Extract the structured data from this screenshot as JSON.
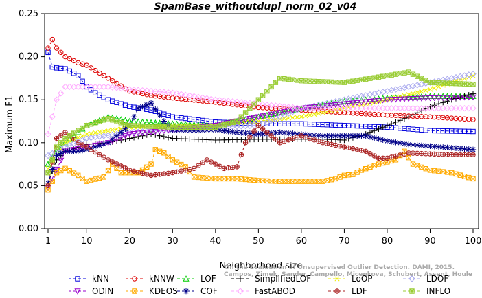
{
  "chart_data": {
    "type": "line",
    "title": "SpamBase_withoutdupl_norm_02_v04",
    "xlabel": "Neighborhood size",
    "ylabel": "Maximum F1",
    "xlim": [
      1,
      100
    ],
    "ylim": [
      0,
      0.25
    ],
    "x_ticks": [
      1,
      10,
      20,
      30,
      40,
      50,
      60,
      70,
      80,
      90,
      100
    ],
    "x_tick_labels": [
      "1",
      "10",
      "20",
      "30",
      "40",
      "50",
      "60",
      "70",
      "80",
      "90",
      "100"
    ],
    "y_ticks": [
      0,
      0.05,
      0.1,
      0.15,
      0.2,
      0.25
    ],
    "y_tick_labels": [
      "0.00",
      "0.05",
      "0.10",
      "0.15",
      "0.20",
      "0.25"
    ],
    "grid": false,
    "legend_placement": "bottom",
    "credit": [
      "Campos, Zimek, Sander, Campello, Micenkova, Schubert, Assent, Houle",
      "On the Evaluation of Unsupervised Outlier Detection. DAMI, 2015."
    ],
    "series": [
      {
        "name": "kNN",
        "color": "#0000dd",
        "marker": "square",
        "x": [
          1,
          2,
          3,
          5,
          8,
          10,
          12,
          15,
          20,
          25,
          30,
          40,
          50,
          60,
          70,
          80,
          90,
          100
        ],
        "values": [
          0.205,
          0.188,
          0.187,
          0.186,
          0.178,
          0.165,
          0.158,
          0.15,
          0.142,
          0.138,
          0.13,
          0.124,
          0.122,
          0.122,
          0.12,
          0.118,
          0.114,
          0.113
        ]
      },
      {
        "name": "kNNW",
        "color": "#dd0000",
        "marker": "circle",
        "x": [
          1,
          2,
          3,
          5,
          8,
          10,
          15,
          20,
          25,
          30,
          40,
          50,
          60,
          70,
          80,
          90,
          100
        ],
        "values": [
          0.21,
          0.22,
          0.21,
          0.2,
          0.193,
          0.19,
          0.175,
          0.16,
          0.155,
          0.152,
          0.147,
          0.141,
          0.138,
          0.135,
          0.132,
          0.13,
          0.127
        ]
      },
      {
        "name": "LOF",
        "color": "#00cc00",
        "marker": "triangle-up",
        "x": [
          1,
          3,
          5,
          10,
          15,
          20,
          30,
          40,
          50,
          60,
          70,
          80,
          90,
          100
        ],
        "values": [
          0.075,
          0.09,
          0.1,
          0.12,
          0.13,
          0.125,
          0.122,
          0.12,
          0.13,
          0.14,
          0.148,
          0.152,
          0.154,
          0.154
        ]
      },
      {
        "name": "SimplifiedLOF",
        "color": "#000000",
        "marker": "plus",
        "x": [
          1,
          3,
          5,
          10,
          15,
          20,
          25,
          30,
          40,
          50,
          60,
          65,
          70,
          75,
          80,
          85,
          90,
          95,
          100
        ],
        "values": [
          0.053,
          0.08,
          0.09,
          0.098,
          0.1,
          0.105,
          0.11,
          0.105,
          0.103,
          0.104,
          0.104,
          0.104,
          0.103,
          0.11,
          0.12,
          0.13,
          0.142,
          0.15,
          0.157
        ]
      },
      {
        "name": "LoOP",
        "color": "#eeee00",
        "marker": "x",
        "x": [
          1,
          5,
          10,
          20,
          30,
          40,
          50,
          60,
          70,
          80,
          90,
          100
        ],
        "values": [
          0.07,
          0.1,
          0.11,
          0.118,
          0.12,
          0.12,
          0.125,
          0.13,
          0.14,
          0.15,
          0.162,
          0.178
        ]
      },
      {
        "name": "LDOF",
        "color": "#aaaaee",
        "marker": "diamond",
        "x": [
          1,
          5,
          10,
          20,
          30,
          40,
          50,
          60,
          70,
          80,
          90,
          100
        ],
        "values": [
          0.085,
          0.095,
          0.105,
          0.112,
          0.115,
          0.118,
          0.12,
          0.14,
          0.15,
          0.16,
          0.17,
          0.18
        ]
      },
      {
        "name": "ODIN",
        "color": "#9900cc",
        "marker": "triangle-down",
        "x": [
          1,
          5,
          10,
          15,
          20,
          30,
          40,
          50,
          60,
          70,
          80,
          90,
          100
        ],
        "values": [
          0.048,
          0.09,
          0.095,
          0.1,
          0.11,
          0.115,
          0.12,
          0.13,
          0.14,
          0.145,
          0.15,
          0.152,
          0.153
        ]
      },
      {
        "name": "KDEOS",
        "color": "#ffaa00",
        "marker": "square-x",
        "x": [
          1,
          3,
          5,
          8,
          10,
          14,
          16,
          18,
          22,
          25,
          26,
          28,
          30,
          33,
          35,
          40,
          45,
          50,
          55,
          60,
          65,
          68,
          70,
          72,
          74,
          78,
          82,
          84,
          86,
          90,
          95,
          100
        ],
        "values": [
          0.045,
          0.065,
          0.07,
          0.062,
          0.055,
          0.06,
          0.075,
          0.065,
          0.065,
          0.075,
          0.092,
          0.088,
          0.08,
          0.072,
          0.06,
          0.058,
          0.058,
          0.056,
          0.055,
          0.055,
          0.055,
          0.058,
          0.062,
          0.063,
          0.068,
          0.075,
          0.08,
          0.09,
          0.075,
          0.068,
          0.065,
          0.058
        ]
      },
      {
        "name": "COF",
        "color": "#000088",
        "marker": "asterisk",
        "x": [
          1,
          3,
          5,
          8,
          10,
          15,
          20,
          22,
          25,
          28,
          30,
          35,
          40,
          45,
          50,
          55,
          60,
          65,
          70,
          75,
          80,
          85,
          90,
          95,
          100
        ],
        "values": [
          0.053,
          0.085,
          0.09,
          0.09,
          0.092,
          0.1,
          0.12,
          0.14,
          0.146,
          0.125,
          0.115,
          0.114,
          0.115,
          0.112,
          0.11,
          0.112,
          0.11,
          0.108,
          0.108,
          0.108,
          0.102,
          0.098,
          0.096,
          0.094,
          0.092
        ]
      },
      {
        "name": "FastABOD",
        "color": "#ffaaff",
        "marker": "diamond",
        "x": [
          1,
          3,
          5,
          8,
          10,
          15,
          20,
          30,
          40,
          50,
          60,
          70,
          80,
          90,
          100
        ],
        "values": [
          0.11,
          0.15,
          0.165,
          0.165,
          0.165,
          0.165,
          0.162,
          0.158,
          0.15,
          0.145,
          0.14,
          0.14,
          0.14,
          0.14,
          0.14
        ]
      },
      {
        "name": "LDF",
        "color": "#aa2222",
        "marker": "circle-plus",
        "x": [
          1,
          3,
          5,
          8,
          10,
          15,
          20,
          25,
          30,
          35,
          38,
          40,
          42,
          45,
          47,
          50,
          53,
          55,
          60,
          65,
          70,
          75,
          78,
          80,
          85,
          90,
          95,
          100
        ],
        "values": [
          0.05,
          0.105,
          0.112,
          0.1,
          0.095,
          0.08,
          0.068,
          0.062,
          0.065,
          0.07,
          0.08,
          0.075,
          0.07,
          0.072,
          0.1,
          0.12,
          0.108,
          0.1,
          0.108,
          0.1,
          0.095,
          0.09,
          0.082,
          0.082,
          0.088,
          0.087,
          0.086,
          0.086
        ]
      },
      {
        "name": "INFLO",
        "color": "#99cc33",
        "marker": "star-box",
        "x": [
          1,
          3,
          5,
          10,
          15,
          20,
          30,
          40,
          45,
          50,
          55,
          60,
          70,
          80,
          85,
          90,
          100
        ],
        "values": [
          0.065,
          0.095,
          0.105,
          0.12,
          0.128,
          0.12,
          0.118,
          0.118,
          0.125,
          0.15,
          0.175,
          0.172,
          0.17,
          0.178,
          0.182,
          0.17,
          0.168
        ]
      }
    ]
  }
}
